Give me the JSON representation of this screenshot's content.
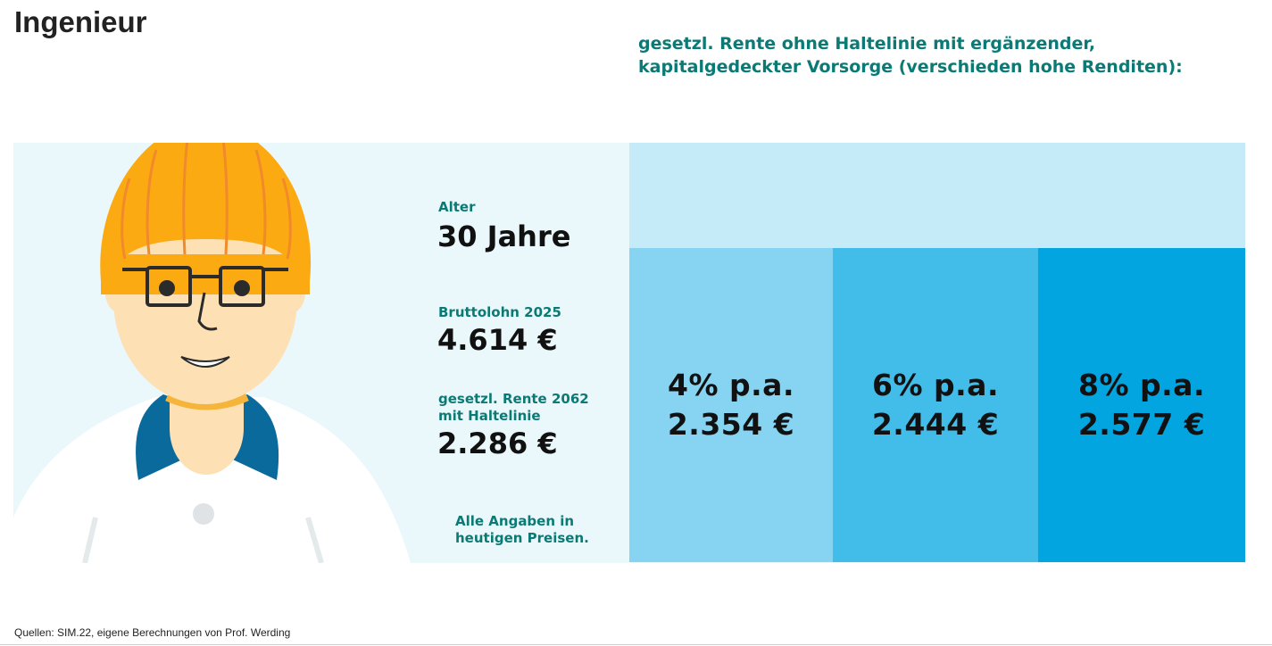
{
  "page": {
    "title": "Ingenieur"
  },
  "header": {
    "text": "gesetzl. Rente ohne Haltelinie mit ergänzender, kapitalgedeckter Vorsorge (verschieden hohe Renditen):"
  },
  "info": {
    "age_label": "Alter",
    "age_value": "30 Jahre",
    "salary_label": "Bruttolohn 2025",
    "salary_value": "4.614 €",
    "pension_label_line1": "gesetzl. Rente 2062",
    "pension_label_line2": "mit Haltelinie",
    "pension_value": "2.286 €",
    "note_line1": "Alle Angaben in",
    "note_line2": "heutigen Preisen."
  },
  "scenarios": [
    {
      "rate": "4% p.a.",
      "amount": "2.354 €",
      "color": "#86d4f2"
    },
    {
      "rate": "6% p.a.",
      "amount": "2.444 €",
      "color": "#42bce8"
    },
    {
      "rate": "8% p.a.",
      "amount": "2.577 €",
      "color": "#03a5e1"
    }
  ],
  "illustration": {
    "icon": "engineer-portrait-icon",
    "helmet_color": "#fcaa12",
    "collar_color": "#0a6a9c"
  },
  "footer": {
    "source": "Quellen: SIM.22, eigene Berechnungen von Prof. Werding"
  }
}
